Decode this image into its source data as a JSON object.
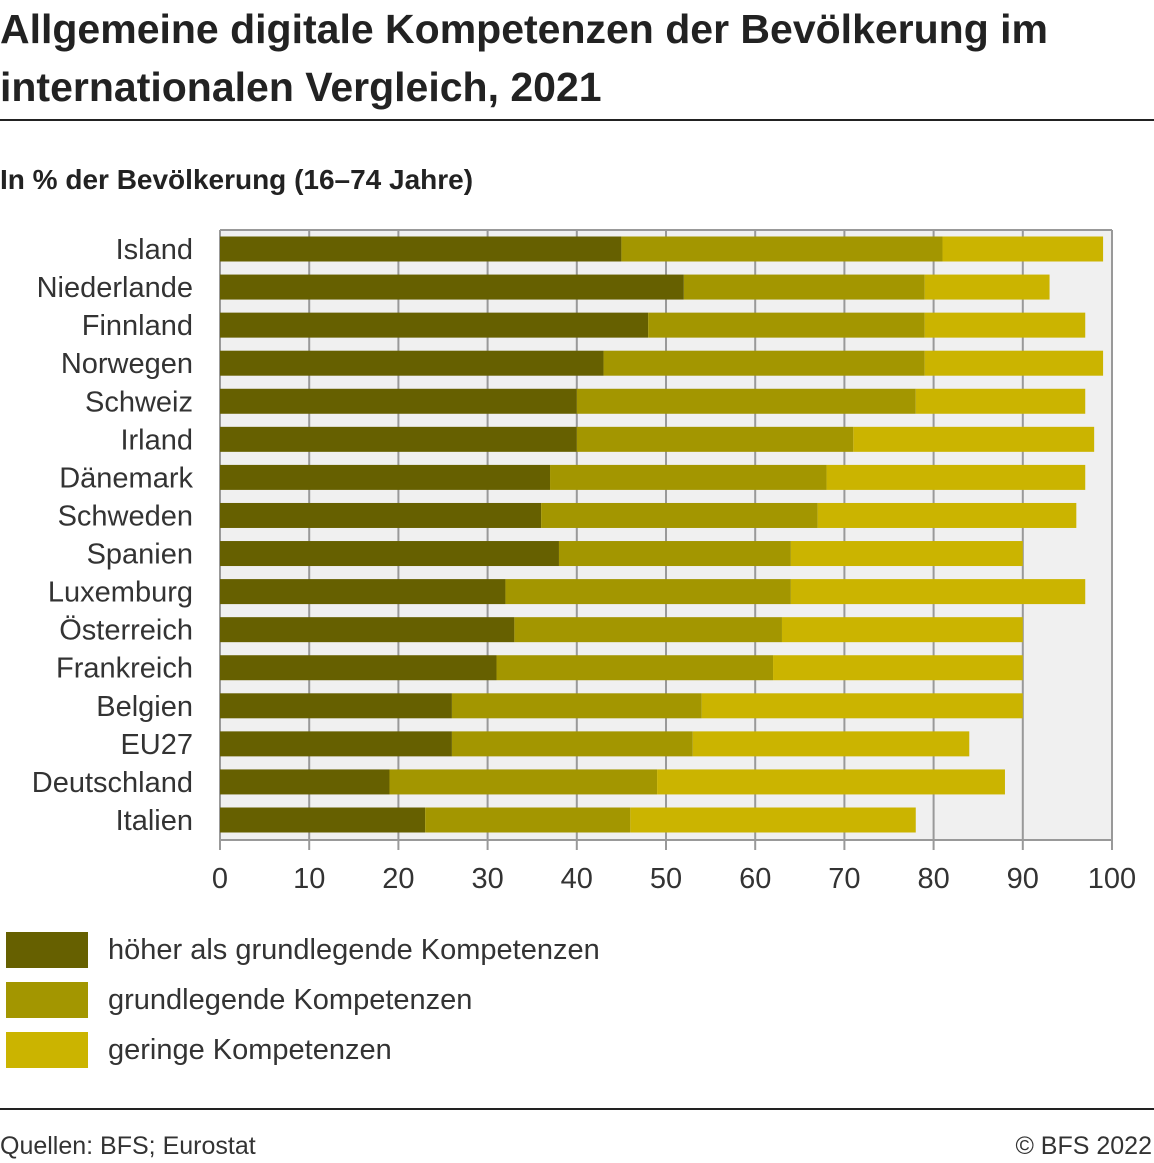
{
  "title": "Allgemeine digitale Kompetenzen der Bevölkerung im internationalen Vergleich, 2021",
  "subtitle": "In % der Bevölkerung (16–74 Jahre)",
  "source": "Quellen: BFS; Eurostat",
  "copyright": "© BFS 2022",
  "chart_data": {
    "type": "bar",
    "orientation": "horizontal",
    "stacked": true,
    "title": "Allgemeine digitale Kompetenzen der Bevölkerung im internationalen Vergleich, 2021",
    "subtitle": "In % der Bevölkerung (16–74 Jahre)",
    "xlim": [
      0,
      100
    ],
    "xticks": [
      0,
      10,
      20,
      30,
      40,
      50,
      60,
      70,
      80,
      90,
      100
    ],
    "grid": true,
    "legend_position": "bottom",
    "categories": [
      "Island",
      "Niederlande",
      "Finnland",
      "Norwegen",
      "Schweiz",
      "Irland",
      "Dänemark",
      "Schweden",
      "Spanien",
      "Luxemburg",
      "Österreich",
      "Frankreich",
      "Belgien",
      "EU27",
      "Deutschland",
      "Italien"
    ],
    "series": [
      {
        "name": "höher als grundlegende Kompetenzen",
        "color": "#666000",
        "values": [
          45,
          52,
          48,
          43,
          40,
          40,
          37,
          36,
          38,
          32,
          33,
          31,
          26,
          26,
          19,
          23
        ]
      },
      {
        "name": "grundlegende Kompetenzen",
        "color": "#a39600",
        "values": [
          36,
          27,
          31,
          36,
          38,
          31,
          31,
          31,
          26,
          32,
          30,
          31,
          28,
          27,
          30,
          23
        ]
      },
      {
        "name": "geringe Kompetenzen",
        "color": "#cbb400",
        "values": [
          18,
          14,
          18,
          20,
          19,
          27,
          29,
          29,
          26,
          33,
          27,
          28,
          36,
          31,
          39,
          32
        ]
      }
    ]
  }
}
